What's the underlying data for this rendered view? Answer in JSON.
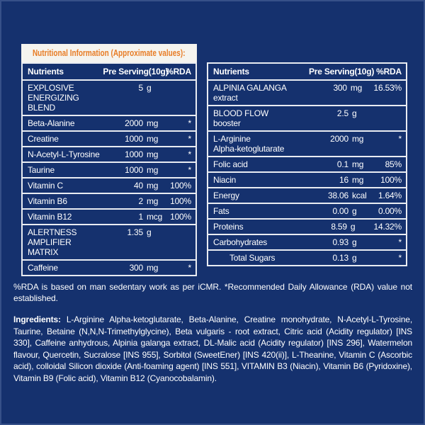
{
  "colors": {
    "background": "#15316e",
    "banner_bg": "#f5f4ef",
    "accent_orange": "#e87c25",
    "border": "#e9ecf2",
    "text": "#ffffff"
  },
  "banner": {
    "title": "Nutritional Information (Approximate values):"
  },
  "left_table": {
    "headers": {
      "name": "Nutrients",
      "serving": "Pre Serving(10g)",
      "rda": "%RDA"
    },
    "rows": [
      {
        "name": "EXPLOSIVE\nENERGIZING BLEND",
        "amount": "5",
        "unit": "g",
        "rda": ""
      },
      {
        "name": "Beta-Alanine",
        "amount": "2000",
        "unit": "mg",
        "rda": "*"
      },
      {
        "name": "Creatine",
        "amount": "1000",
        "unit": "mg",
        "rda": "*"
      },
      {
        "name": "N-Acetyl-L-Tyrosine",
        "amount": "1000",
        "unit": "mg",
        "rda": "*"
      },
      {
        "name": "Taurine",
        "amount": "1000",
        "unit": "mg",
        "rda": "*"
      },
      {
        "name": "Vitamin C",
        "amount": "40",
        "unit": "mg",
        "rda": "100%"
      },
      {
        "name": "Vitamin B6",
        "amount": "2",
        "unit": "mg",
        "rda": "100%"
      },
      {
        "name": "Vitamin B12",
        "amount": "1",
        "unit": "mcg",
        "rda": "100%"
      },
      {
        "name": "ALERTNESS\nAMPLIFIER MATRIX",
        "amount": "1.35",
        "unit": "g",
        "rda": ""
      },
      {
        "name": "Caffeine",
        "amount": "300",
        "unit": "mg",
        "rda": "*"
      }
    ]
  },
  "right_table": {
    "headers": {
      "name": "Nutrients",
      "serving": "Pre Serving(10g)",
      "rda": "%RDA"
    },
    "rows": [
      {
        "name": "ALPINIA GALANGA\nextract",
        "amount": "300",
        "unit": "mg",
        "rda": "16.53%"
      },
      {
        "name": "BLOOD FLOW\nbooster",
        "amount": "2.5",
        "unit": "g",
        "rda": ""
      },
      {
        "name": "L-Arginine\nAlpha-ketoglutarate",
        "amount": "2000",
        "unit": "mg",
        "rda": "*"
      },
      {
        "name": "Folic acid",
        "amount": "0.1",
        "unit": "mg",
        "rda": "85%"
      },
      {
        "name": "Niacin",
        "amount": "16",
        "unit": "mg",
        "rda": "100%"
      },
      {
        "name": "Energy",
        "amount": "38.06",
        "unit": "kcal",
        "rda": "1.64%"
      },
      {
        "name": "Fats",
        "amount": "0.00",
        "unit": "g",
        "rda": "0.00%"
      },
      {
        "name": "Proteins",
        "amount": "8.59",
        "unit": "g",
        "rda": "14.32%"
      },
      {
        "name": "Carbohydrates",
        "amount": "0.93",
        "unit": "g",
        "rda": "*"
      },
      {
        "name": "Total Sugars",
        "amount": "0.13",
        "unit": "g",
        "rda": "*",
        "indent": true
      }
    ]
  },
  "footnote": "%RDA is based on man sedentary work as per iCMR. *Recommended Daily Allowance (RDA) value not established.",
  "ingredients": {
    "label": "Ingredients:",
    "text": "L-Arginine Alpha-ketoglutarate, Beta-Alanine, Creatine monohydrate, N-Acetyl-L-Tyrosine, Taurine, Betaine (N,N,N-Trimethylglycine), Beta vulgaris - root extract, Citric acid (Acidity regulator) [INS 330], Caffeine anhydrous, Alpinia galanga extract, DL-Malic acid (Acidity regulator) [INS 296], Watermelon flavour, Quercetin, Sucralose [INS 955], Sorbitol (SweetEner) [INS 420(ii)], L-Theanine, Vitamin C (Ascorbic acid), colloidal Silicon dioxide (Anti-foaming agent) [INS 551], VITAMIN B3 (Niacin), Vitamin B6 (Pyridoxine), Vitamin B9 (Folic acid), Vitamin B12 (Cyanocobalamin)."
  }
}
